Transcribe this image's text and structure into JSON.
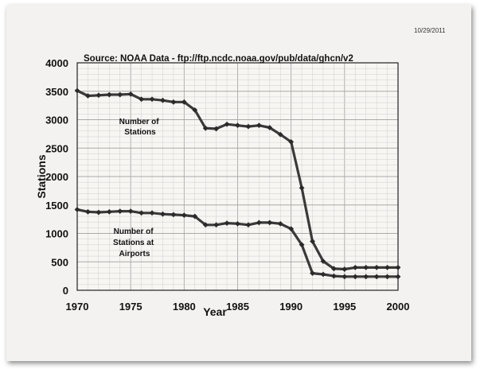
{
  "date_stamp": "10/29/2011",
  "chart_data": {
    "type": "line",
    "title": "Source: NOAA Data - ftp://ftp.ncdc.noaa.gov/pub/data/ghcn/v2",
    "xlabel": "Year",
    "ylabel": "Stations",
    "xlim": [
      1970,
      2000
    ],
    "ylim": [
      0,
      4000
    ],
    "x_ticks": [
      1970,
      1975,
      1980,
      1985,
      1990,
      1995,
      2000
    ],
    "y_ticks": [
      0,
      500,
      1000,
      1500,
      2000,
      2500,
      3000,
      3500,
      4000
    ],
    "grid": true,
    "annotations": [
      {
        "lines": [
          "Number of",
          "Stations"
        ]
      },
      {
        "lines": [
          "Number of",
          "Stations at",
          "Airports"
        ]
      }
    ],
    "series": [
      {
        "x": [
          1970,
          1971,
          1972,
          1973,
          1974,
          1975,
          1976,
          1977,
          1978,
          1979,
          1980,
          1981,
          1982,
          1983,
          1984,
          1985,
          1986,
          1987,
          1988,
          1989,
          1990,
          1991,
          1992,
          1993,
          1994,
          1995,
          1996,
          1997,
          1998,
          1999,
          2000
        ],
        "values": [
          3510,
          3420,
          3430,
          3440,
          3440,
          3450,
          3360,
          3360,
          3340,
          3310,
          3310,
          3170,
          2850,
          2840,
          2920,
          2900,
          2880,
          2900,
          2860,
          2740,
          2610,
          1800,
          860,
          510,
          380,
          370,
          400,
          400,
          400,
          400,
          400
        ]
      },
      {
        "x": [
          1970,
          1971,
          1972,
          1973,
          1974,
          1975,
          1976,
          1977,
          1978,
          1979,
          1980,
          1981,
          1982,
          1983,
          1984,
          1985,
          1986,
          1987,
          1988,
          1989,
          1990,
          1991,
          1992,
          1993,
          1994,
          1995,
          1996,
          1997,
          1998,
          1999,
          2000
        ],
        "values": [
          1420,
          1380,
          1370,
          1380,
          1390,
          1390,
          1360,
          1360,
          1340,
          1330,
          1320,
          1300,
          1150,
          1150,
          1180,
          1170,
          1150,
          1190,
          1190,
          1170,
          1080,
          800,
          300,
          280,
          250,
          240,
          240,
          240,
          240,
          240,
          240
        ]
      }
    ]
  }
}
